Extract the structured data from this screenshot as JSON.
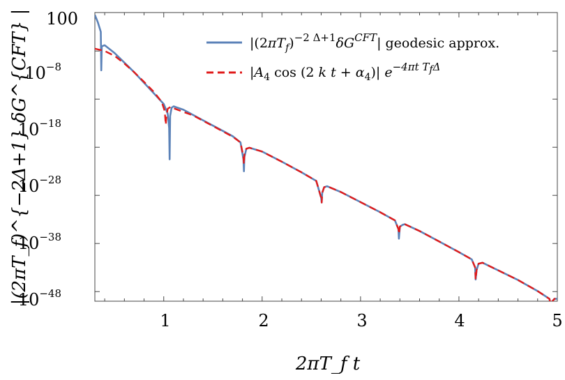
{
  "chart_data": {
    "type": "line",
    "xlabel": "2πT_f t",
    "ylabel": "|(2πT_f)^{−2Δ+1} δG^{CFT} |",
    "xlim": [
      0.3,
      5.0
    ],
    "ylim_log10": [
      -50,
      10
    ],
    "y_scale": "log",
    "grid": false,
    "legend_position": "top-right",
    "x_ticks": [
      "1",
      "2",
      "3",
      "4",
      "5"
    ],
    "y_ticks": [
      {
        "base": "100",
        "exp": ""
      },
      {
        "base": "10",
        "exp": "−8"
      },
      {
        "base": "10",
        "exp": "−18"
      },
      {
        "base": "10",
        "exp": "−28"
      },
      {
        "base": "10",
        "exp": "−38"
      },
      {
        "base": "10",
        "exp": "−48"
      }
    ],
    "legend": {
      "entry1": {
        "pre": "|(2",
        "pi": "π",
        "T": "T",
        "Tsub": "f",
        "mid": ")",
        "sup": "−2 Δ+1",
        "delta": "δ",
        "G": "G",
        "Gsup": "CFT",
        "post": "| geodesic approx."
      },
      "entry2": {
        "pre": "|",
        "A": "A",
        "Asub": "4",
        "cos": " cos (2 ",
        "k": "k",
        "t": " t",
        "plus": " + ",
        "alpha": "α",
        "asub": "4",
        "close": ")| ",
        "e": "e",
        "esup": "−4πt T",
        "esupsub": "f",
        "esupend": "Δ"
      }
    },
    "series": [
      {
        "color": "#5b82b8",
        "dash": "solid",
        "log10_values": [
          [
            0.3,
            9.5
          ],
          [
            0.33,
            8.0
          ],
          [
            0.36,
            6.0
          ],
          [
            0.365,
            -2.0
          ],
          [
            0.37,
            3.0
          ],
          [
            0.4,
            3.2
          ],
          [
            0.5,
            1.6
          ],
          [
            0.6,
            -0.4
          ],
          [
            0.7,
            -2.4
          ],
          [
            0.8,
            -4.6
          ],
          [
            0.9,
            -6.8
          ],
          [
            1.0,
            -9.0
          ],
          [
            1.04,
            -11.0
          ],
          [
            1.055,
            -14.0
          ],
          [
            1.06,
            -20.5
          ],
          [
            1.065,
            -11.5
          ],
          [
            1.08,
            -9.8
          ],
          [
            1.1,
            -9.5
          ],
          [
            1.2,
            -10.2
          ],
          [
            1.3,
            -11.3
          ],
          [
            1.4,
            -12.4
          ],
          [
            1.5,
            -13.5
          ],
          [
            1.6,
            -14.6
          ],
          [
            1.7,
            -15.7
          ],
          [
            1.78,
            -17.0
          ],
          [
            1.81,
            -20.5
          ],
          [
            1.815,
            -23.0
          ],
          [
            1.82,
            -20.0
          ],
          [
            1.84,
            -18.3
          ],
          [
            1.87,
            -18.1
          ],
          [
            2.0,
            -18.9
          ],
          [
            2.2,
            -21.0
          ],
          [
            2.4,
            -23.2
          ],
          [
            2.55,
            -25.0
          ],
          [
            2.6,
            -28.5
          ],
          [
            2.605,
            -29.5
          ],
          [
            2.61,
            -27.5
          ],
          [
            2.63,
            -26.3
          ],
          [
            2.66,
            -26.1
          ],
          [
            2.8,
            -27.3
          ],
          [
            3.0,
            -29.4
          ],
          [
            3.2,
            -31.5
          ],
          [
            3.35,
            -33.2
          ],
          [
            3.385,
            -35.0
          ],
          [
            3.39,
            -37.0
          ],
          [
            3.4,
            -34.5
          ],
          [
            3.43,
            -34.1
          ],
          [
            3.45,
            -34.0
          ],
          [
            3.6,
            -35.4
          ],
          [
            3.8,
            -37.6
          ],
          [
            4.0,
            -39.8
          ],
          [
            4.13,
            -41.3
          ],
          [
            4.165,
            -43.0
          ],
          [
            4.17,
            -45.5
          ],
          [
            4.18,
            -43.5
          ],
          [
            4.2,
            -42.2
          ],
          [
            4.24,
            -42.0
          ],
          [
            4.4,
            -43.6
          ],
          [
            4.6,
            -45.6
          ],
          [
            4.8,
            -47.9
          ],
          [
            4.92,
            -49.5
          ],
          [
            4.945,
            -52.0
          ],
          [
            4.95,
            -50.0
          ],
          [
            4.97,
            -49.5
          ],
          [
            5.0,
            -49.5
          ]
        ]
      },
      {
        "color": "#e01b1b",
        "dash": "dashed",
        "log10_values": [
          [
            0.3,
            2.5
          ],
          [
            0.4,
            2.0
          ],
          [
            0.5,
            1.0
          ],
          [
            0.6,
            -0.6
          ],
          [
            0.7,
            -2.4
          ],
          [
            0.8,
            -4.4
          ],
          [
            0.9,
            -6.5
          ],
          [
            0.98,
            -8.6
          ],
          [
            1.01,
            -10.5
          ],
          [
            1.02,
            -13.3
          ],
          [
            1.025,
            -12.0
          ],
          [
            1.04,
            -10.0
          ],
          [
            1.07,
            -9.6
          ],
          [
            1.1,
            -9.9
          ],
          [
            1.3,
            -11.4
          ],
          [
            1.5,
            -13.6
          ],
          [
            1.7,
            -15.8
          ],
          [
            1.78,
            -17.0
          ],
          [
            1.81,
            -20.0
          ],
          [
            1.815,
            -21.5
          ],
          [
            1.82,
            -19.5
          ],
          [
            1.84,
            -18.3
          ],
          [
            1.87,
            -18.1
          ],
          [
            2.0,
            -18.9
          ],
          [
            2.2,
            -21.0
          ],
          [
            2.4,
            -23.2
          ],
          [
            2.55,
            -25.0
          ],
          [
            2.6,
            -28.5
          ],
          [
            2.605,
            -29.5
          ],
          [
            2.61,
            -27.5
          ],
          [
            2.63,
            -26.3
          ],
          [
            2.66,
            -26.1
          ],
          [
            2.8,
            -27.3
          ],
          [
            3.0,
            -29.4
          ],
          [
            3.2,
            -31.5
          ],
          [
            3.35,
            -33.2
          ],
          [
            3.385,
            -35.0
          ],
          [
            3.39,
            -36.0
          ],
          [
            3.4,
            -34.5
          ],
          [
            3.43,
            -34.1
          ],
          [
            3.45,
            -34.0
          ],
          [
            3.6,
            -35.4
          ],
          [
            3.8,
            -37.6
          ],
          [
            4.0,
            -39.8
          ],
          [
            4.13,
            -41.3
          ],
          [
            4.165,
            -43.0
          ],
          [
            4.17,
            -45.5
          ],
          [
            4.18,
            -43.5
          ],
          [
            4.2,
            -42.2
          ],
          [
            4.24,
            -42.0
          ],
          [
            4.4,
            -43.6
          ],
          [
            4.6,
            -45.6
          ],
          [
            4.8,
            -47.9
          ],
          [
            4.92,
            -49.5
          ],
          [
            4.945,
            -52.0
          ],
          [
            4.95,
            -50.0
          ],
          [
            4.97,
            -49.5
          ],
          [
            5.0,
            -49.5
          ]
        ]
      }
    ]
  }
}
